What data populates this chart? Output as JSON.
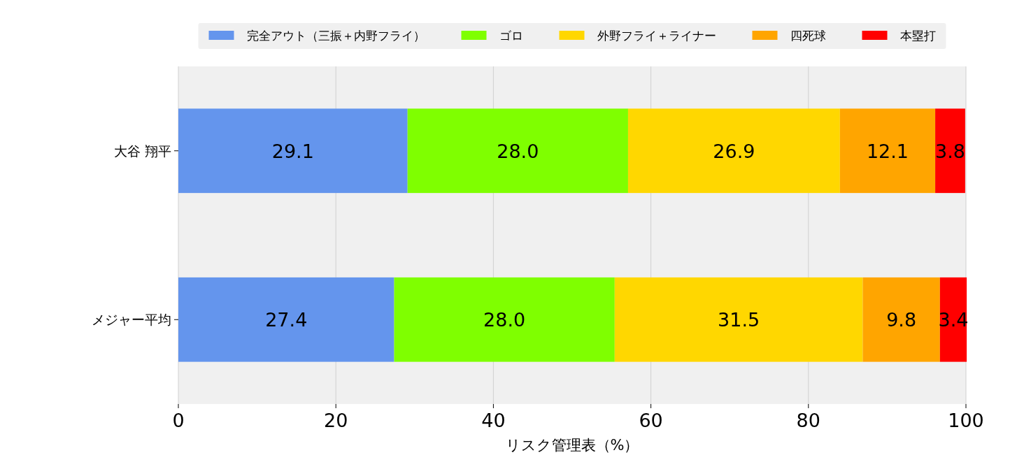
{
  "chart_data": {
    "type": "bar",
    "orientation": "horizontal",
    "stacked": true,
    "xlabel": "リスク管理表（%）",
    "categories": [
      "大谷 翔平",
      "メジャー平均"
    ],
    "series": [
      {
        "name": "完全アウト（三振＋内野フライ）",
        "color": "#6495ed",
        "values": [
          29.1,
          27.4
        ],
        "value_labels": [
          "29.1",
          "27.4"
        ]
      },
      {
        "name": "ゴロ",
        "color": "#7fff00",
        "values": [
          28.0,
          28.0
        ],
        "value_labels": [
          "28.0",
          "28.0"
        ]
      },
      {
        "name": "外野フライ＋ライナー",
        "color": "#ffd700",
        "values": [
          26.9,
          31.5
        ],
        "value_labels": [
          "26.9",
          "31.5"
        ]
      },
      {
        "name": "四死球",
        "color": "#ffa500",
        "values": [
          12.1,
          9.8
        ],
        "value_labels": [
          "12.1",
          "9.8"
        ]
      },
      {
        "name": "本塁打",
        "color": "#ff0000",
        "values": [
          3.8,
          3.4
        ],
        "value_labels": [
          "3.8",
          "3.4"
        ]
      }
    ],
    "xlim": [
      0,
      100
    ],
    "xticks": [
      0,
      20,
      40,
      60,
      80,
      100
    ],
    "grid": "x",
    "legend": "top"
  }
}
